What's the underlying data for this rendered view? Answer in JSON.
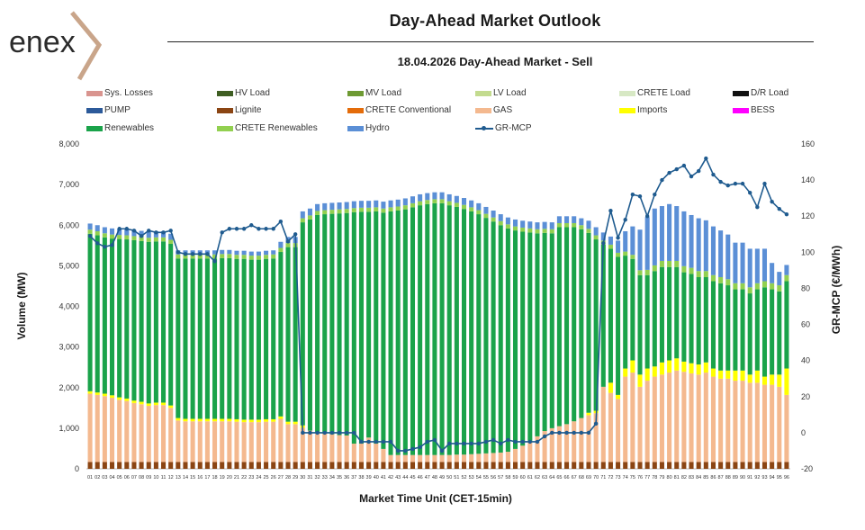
{
  "header": {
    "logo_text": "enex",
    "title": "Day-Ahead Market Outlook",
    "subtitle": "18.04.2026  Day-Ahead Market - Sell"
  },
  "colors": {
    "logo_accent": "#c9a58a",
    "logo_text": "#2b2b2b",
    "line": "#1f5b8f"
  },
  "legend": [
    {
      "label": "Sys. Losses",
      "color": "#d9948f",
      "kind": "box"
    },
    {
      "label": "HV Load",
      "color": "#3f5e23",
      "kind": "box"
    },
    {
      "label": "MV Load",
      "color": "#6e9a33",
      "kind": "box"
    },
    {
      "label": "LV Load",
      "color": "#c3db8f",
      "kind": "box"
    },
    {
      "label": "CRETE Load",
      "color": "#d7e8c4",
      "kind": "box"
    },
    {
      "label": "D/R Load",
      "color": "#111111",
      "kind": "box"
    },
    {
      "label": "PUMP",
      "color": "#2c5a9a",
      "kind": "box"
    },
    {
      "label": "Lignite",
      "color": "#8b4513",
      "kind": "box"
    },
    {
      "label": "CRETE Conventional",
      "color": "#e46c0a",
      "kind": "box"
    },
    {
      "label": "GAS",
      "color": "#f4b98f",
      "kind": "box"
    },
    {
      "label": "Imports",
      "color": "#ffff00",
      "kind": "box"
    },
    {
      "label": "BESS",
      "color": "#ff00ff",
      "kind": "box"
    },
    {
      "label": "Renewables",
      "color": "#1aa34a",
      "kind": "box"
    },
    {
      "label": "CRETE Renewables",
      "color": "#92d050",
      "kind": "box"
    },
    {
      "label": "Hydro",
      "color": "#5b8fd6",
      "kind": "box"
    },
    {
      "label": "GR-MCP",
      "color": "#1f5b8f",
      "kind": "line"
    }
  ],
  "chart_data": {
    "type": "bar",
    "stacked": true,
    "xlabel": "Market Time Unit (CET-15min)",
    "ylabel": "Volume (MW)",
    "y2label": "GR-MCP (€/MWh)",
    "ylim": [
      0,
      8000
    ],
    "y2lim": [
      -20,
      160
    ],
    "yticks": [
      "0",
      "1,000",
      "2,000",
      "3,000",
      "4,000",
      "5,000",
      "6,000",
      "7,000",
      "8,000"
    ],
    "y2ticks": [
      "-20",
      "0",
      "20",
      "40",
      "60",
      "80",
      "100",
      "120",
      "140",
      "160"
    ],
    "categories": [
      "01",
      "02",
      "03",
      "04",
      "05",
      "06",
      "07",
      "08",
      "09",
      "10",
      "11",
      "12",
      "13",
      "14",
      "15",
      "16",
      "17",
      "18",
      "19",
      "20",
      "21",
      "22",
      "23",
      "24",
      "25",
      "26",
      "27",
      "28",
      "29",
      "30",
      "31",
      "32",
      "33",
      "34",
      "35",
      "36",
      "37",
      "38",
      "39",
      "40",
      "41",
      "42",
      "43",
      "44",
      "45",
      "46",
      "47",
      "48",
      "49",
      "50",
      "51",
      "52",
      "53",
      "54",
      "55",
      "56",
      "57",
      "58",
      "59",
      "60",
      "61",
      "62",
      "63",
      "64",
      "65",
      "66",
      "67",
      "68",
      "69",
      "70",
      "71",
      "72",
      "73",
      "74",
      "75",
      "76",
      "77",
      "78",
      "79",
      "80",
      "81",
      "82",
      "83",
      "84",
      "85",
      "86",
      "87",
      "88",
      "89",
      "90",
      "91",
      "92",
      "93",
      "94",
      "95",
      "96"
    ],
    "series": [
      {
        "name": "Lignite",
        "color": "#8b4513",
        "values": [
          170,
          170,
          170,
          170,
          170,
          170,
          170,
          170,
          170,
          170,
          170,
          170,
          170,
          170,
          170,
          170,
          170,
          170,
          170,
          170,
          170,
          170,
          170,
          170,
          170,
          170,
          170,
          170,
          170,
          170,
          170,
          170,
          170,
          170,
          170,
          170,
          170,
          170,
          170,
          170,
          170,
          170,
          170,
          170,
          170,
          170,
          170,
          170,
          170,
          170,
          170,
          170,
          170,
          170,
          170,
          170,
          170,
          170,
          170,
          170,
          170,
          170,
          170,
          170,
          170,
          170,
          170,
          170,
          170,
          170,
          170,
          170,
          170,
          170,
          170,
          170,
          170,
          170,
          170,
          170,
          170,
          170,
          170,
          170,
          170,
          170,
          170,
          170,
          170,
          170,
          170,
          170,
          170,
          170,
          170,
          170
        ]
      },
      {
        "name": "GAS",
        "color": "#f4b98f",
        "values": [
          1680,
          1650,
          1620,
          1580,
          1530,
          1500,
          1450,
          1420,
          1380,
          1400,
          1400,
          1330,
          1020,
          1000,
          1000,
          1000,
          1000,
          1000,
          1000,
          1000,
          990,
          980,
          980,
          980,
          990,
          990,
          1060,
          930,
          930,
          840,
          770,
          730,
          700,
          680,
          660,
          650,
          450,
          450,
          600,
          450,
          320,
          170,
          170,
          170,
          170,
          170,
          170,
          170,
          170,
          170,
          180,
          180,
          190,
          200,
          210,
          220,
          230,
          250,
          320,
          400,
          520,
          630,
          760,
          830,
          880,
          930,
          1000,
          1080,
          1150,
          1200,
          1850,
          1700,
          1550,
          2100,
          2200,
          1850,
          2000,
          2100,
          2150,
          2200,
          2250,
          2220,
          2180,
          2150,
          2200,
          2100,
          2050,
          2050,
          2000,
          2000,
          1950,
          1950,
          1900,
          1900,
          1850,
          1650
        ]
      },
      {
        "name": "Imports",
        "color": "#ffff00",
        "values": [
          60,
          60,
          60,
          60,
          60,
          60,
          60,
          60,
          60,
          60,
          60,
          60,
          60,
          60,
          60,
          60,
          60,
          60,
          60,
          60,
          60,
          60,
          60,
          60,
          60,
          60,
          60,
          60,
          60,
          60,
          0,
          0,
          0,
          0,
          0,
          0,
          0,
          0,
          0,
          0,
          0,
          0,
          0,
          0,
          0,
          0,
          0,
          0,
          0,
          0,
          0,
          0,
          0,
          0,
          0,
          0,
          0,
          0,
          0,
          0,
          0,
          0,
          0,
          0,
          0,
          0,
          0,
          0,
          60,
          60,
          0,
          250,
          100,
          200,
          300,
          300,
          300,
          250,
          300,
          300,
          300,
          250,
          250,
          250,
          250,
          200,
          200,
          200,
          250,
          250,
          200,
          300,
          200,
          250,
          300,
          650
        ]
      },
      {
        "name": "Renewables",
        "color": "#1aa34a",
        "values": [
          3880,
          3870,
          3850,
          3860,
          3900,
          3920,
          3950,
          3960,
          3980,
          3970,
          3970,
          3980,
          3930,
          3950,
          3950,
          3950,
          3950,
          3950,
          3960,
          3960,
          3950,
          3960,
          3940,
          3940,
          3950,
          3960,
          4050,
          4300,
          4300,
          5000,
          5200,
          5350,
          5400,
          5430,
          5460,
          5480,
          5700,
          5710,
          5560,
          5720,
          5820,
          6000,
          6020,
          6050,
          6100,
          6150,
          6180,
          6200,
          6200,
          6150,
          6100,
          6050,
          5980,
          5900,
          5800,
          5700,
          5600,
          5500,
          5380,
          5270,
          5130,
          5000,
          4880,
          4800,
          4900,
          4850,
          4780,
          4650,
          4430,
          4220,
          3500,
          3300,
          3400,
          2780,
          2500,
          2450,
          2300,
          2350,
          2350,
          2300,
          2250,
          2200,
          2200,
          2150,
          2100,
          2150,
          2150,
          2100,
          2000,
          2000,
          2000,
          2000,
          2200,
          2100,
          2050,
          2150
        ]
      },
      {
        "name": "CRETE Renewables",
        "color": "#92d050",
        "values": [
          100,
          100,
          100,
          100,
          100,
          100,
          100,
          100,
          100,
          100,
          100,
          100,
          100,
          100,
          100,
          100,
          100,
          100,
          100,
          100,
          100,
          100,
          100,
          100,
          100,
          100,
          100,
          100,
          100,
          100,
          100,
          100,
          100,
          100,
          100,
          100,
          100,
          100,
          100,
          100,
          100,
          100,
          100,
          100,
          100,
          100,
          100,
          100,
          100,
          100,
          100,
          100,
          100,
          100,
          100,
          100,
          100,
          100,
          100,
          100,
          100,
          100,
          100,
          100,
          100,
          100,
          100,
          100,
          100,
          100,
          100,
          100,
          100,
          100,
          100,
          120,
          130,
          140,
          150,
          150,
          150,
          150,
          150,
          150,
          150,
          150,
          150,
          150,
          150,
          150,
          150,
          150,
          150,
          150,
          150,
          150
        ]
      },
      {
        "name": "Hydro",
        "color": "#5b8fd6",
        "values": [
          150,
          150,
          150,
          150,
          150,
          150,
          150,
          150,
          150,
          150,
          150,
          150,
          100,
          100,
          100,
          100,
          100,
          100,
          100,
          100,
          100,
          100,
          100,
          100,
          100,
          100,
          150,
          150,
          150,
          170,
          170,
          170,
          170,
          170,
          170,
          170,
          170,
          170,
          170,
          170,
          170,
          170,
          170,
          170,
          170,
          170,
          170,
          170,
          170,
          170,
          170,
          170,
          170,
          170,
          170,
          170,
          170,
          170,
          170,
          170,
          170,
          170,
          170,
          170,
          170,
          170,
          170,
          170,
          200,
          200,
          200,
          200,
          300,
          500,
          700,
          1000,
          1300,
          1400,
          1350,
          1400,
          1350,
          1350,
          1300,
          1300,
          1250,
          1200,
          1150,
          1100,
          1000,
          1000,
          950,
          850,
          800,
          500,
          330,
          250
        ]
      }
    ],
    "line": {
      "name": "GR-MCP",
      "color": "#1f5b8f",
      "values": [
        109,
        105,
        103,
        104,
        113,
        113,
        112,
        109,
        112,
        111,
        111,
        112,
        100,
        99,
        99,
        99,
        99,
        95,
        111,
        113,
        113,
        113,
        115,
        113,
        113,
        113,
        117,
        106,
        110,
        0,
        0,
        0,
        0,
        0,
        0,
        0,
        0,
        -5,
        -5,
        -5,
        -5,
        -5,
        -10,
        -10,
        -9,
        -8,
        -5,
        -4,
        -10,
        -6,
        -6,
        -6,
        -6,
        -6,
        -5,
        -4,
        -6,
        -4,
        -5,
        -5,
        -5,
        -5,
        -2,
        0,
        0,
        0,
        0,
        0,
        0,
        5,
        105,
        123,
        108,
        118,
        132,
        131,
        120,
        132,
        140,
        144,
        146,
        148,
        142,
        145,
        152,
        143,
        139,
        137,
        138,
        138,
        133,
        125,
        138,
        128,
        124,
        121
      ]
    }
  }
}
